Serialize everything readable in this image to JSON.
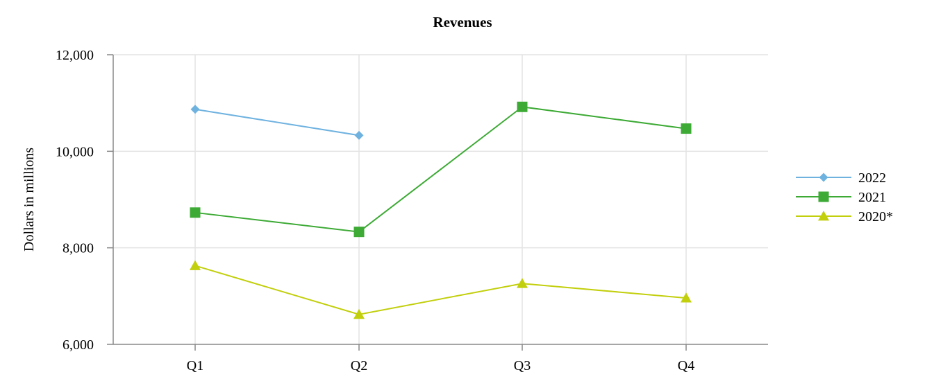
{
  "chart_data": {
    "type": "line",
    "title": "Revenues",
    "xlabel": "",
    "ylabel": "Dollars in millions",
    "categories": [
      "Q1",
      "Q2",
      "Q3",
      "Q4"
    ],
    "ylim": [
      6000,
      12000
    ],
    "yticks": [
      6000,
      8000,
      10000,
      12000
    ],
    "ytick_labels": [
      "6,000",
      "8,000",
      "10,000",
      "12,000"
    ],
    "grid": true,
    "legend_position": "right",
    "series": [
      {
        "name": "2022",
        "color": "#6fb2e0",
        "marker": "diamond",
        "values": [
          10870,
          10330,
          null,
          null
        ]
      },
      {
        "name": "2021",
        "color": "#3daa35",
        "marker": "square",
        "values": [
          8730,
          8330,
          10920,
          10470
        ]
      },
      {
        "name": "2020*",
        "color": "#c2cf0c",
        "marker": "triangle",
        "values": [
          7630,
          6620,
          7260,
          6960
        ]
      }
    ]
  }
}
